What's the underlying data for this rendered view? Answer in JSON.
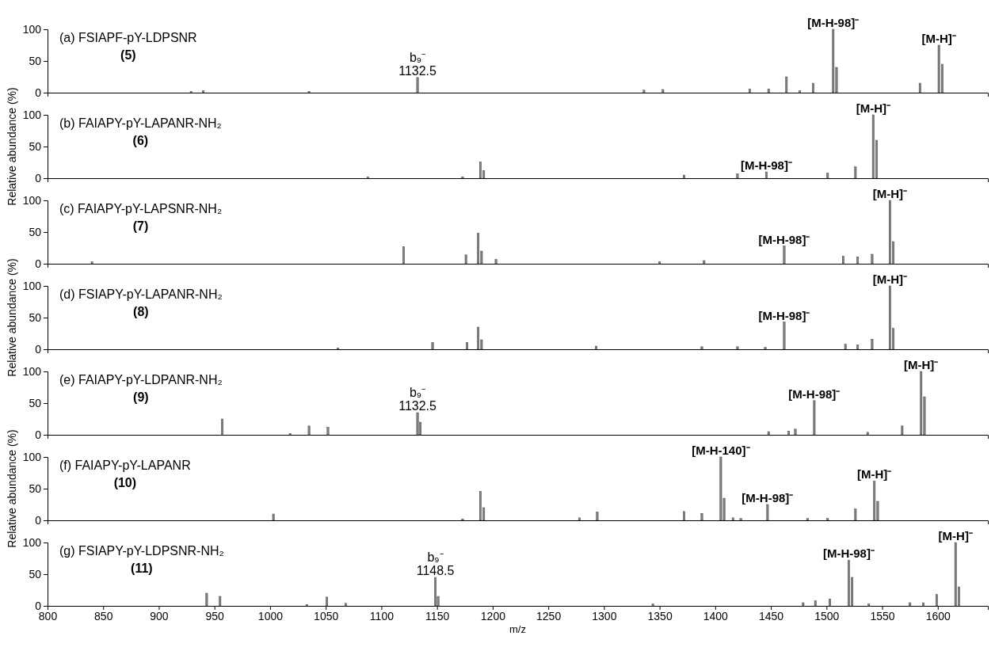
{
  "chart_data": [
    {
      "type": "bar",
      "title": "(a) FSIAPF-pY-LDPSNR",
      "subtitle": "(5)",
      "xlim": [
        800,
        1645
      ],
      "ylim": [
        0,
        100
      ],
      "yticks": [
        0,
        50,
        100
      ],
      "tick_labels": "y",
      "color": "#808080",
      "x": [
        929,
        940,
        1035,
        1132.5,
        1336,
        1353,
        1431,
        1448,
        1464,
        1476,
        1488,
        1506,
        1509,
        1584,
        1601,
        1604
      ],
      "values": [
        2,
        3,
        2,
        24,
        4,
        5,
        6,
        6,
        25,
        3,
        15,
        100,
        40,
        15,
        75,
        45
      ],
      "annotations": [
        {
          "text": "b₉⁻\n1132.5",
          "x": 1132.5,
          "y": 24
        },
        {
          "text": "[M-H-98]⁻",
          "x": 1506,
          "y": 100
        },
        {
          "text": "[M-H]⁻",
          "x": 1601,
          "y": 75
        }
      ]
    },
    {
      "type": "bar",
      "title": "(b) FAIAPY-pY-LAPANR-NH₂",
      "subtitle": "(6)",
      "ylabel": "Relative abundance (%)",
      "xlim": [
        800,
        1645
      ],
      "ylim": [
        0,
        100
      ],
      "yticks": [
        0,
        50,
        100
      ],
      "tick_labels": "y",
      "color": "#808080",
      "x": [
        1088,
        1173,
        1189,
        1192,
        1372,
        1420,
        1446,
        1501,
        1526,
        1542,
        1545
      ],
      "values": [
        2,
        2,
        26,
        12,
        5,
        7,
        10,
        8,
        18,
        100,
        60
      ],
      "annotations": [
        {
          "text": "[M-H-98]⁻",
          "x": 1446,
          "y": 10
        },
        {
          "text": "[M-H]⁻",
          "x": 1542,
          "y": 100
        }
      ]
    },
    {
      "type": "bar",
      "title": "(c) FAIAPY-pY-LAPSNR-NH₂",
      "subtitle": "(7)",
      "xlim": [
        800,
        1645
      ],
      "ylim": [
        0,
        100
      ],
      "yticks": [
        0,
        50,
        100
      ],
      "tick_labels": "y",
      "color": "#808080",
      "x": [
        840,
        1120,
        1176,
        1187,
        1190,
        1203,
        1350,
        1390,
        1462,
        1515,
        1528,
        1541,
        1557,
        1560
      ],
      "values": [
        3,
        27,
        14,
        48,
        20,
        7,
        3,
        5,
        28,
        12,
        11,
        15,
        100,
        35
      ],
      "annotations": [
        {
          "text": "[M-H-98]⁻",
          "x": 1462,
          "y": 28
        },
        {
          "text": "[M-H]⁻",
          "x": 1557,
          "y": 100
        }
      ]
    },
    {
      "type": "bar",
      "title": "(d) FSIAPY-pY-LAPANR-NH₂",
      "subtitle": "(8)",
      "ylabel": "Relative abundance (%)",
      "xlim": [
        800,
        1645
      ],
      "ylim": [
        0,
        100
      ],
      "yticks": [
        0,
        50,
        100
      ],
      "tick_labels": "y",
      "color": "#808080",
      "x": [
        1061,
        1146,
        1177,
        1187,
        1190,
        1293,
        1388,
        1420,
        1445,
        1462,
        1517,
        1528,
        1541,
        1557,
        1560
      ],
      "values": [
        2,
        11,
        11,
        35,
        15,
        5,
        4,
        4,
        3,
        43,
        8,
        7,
        16,
        100,
        33
      ],
      "annotations": [
        {
          "text": "[M-H-98]⁻",
          "x": 1462,
          "y": 43
        },
        {
          "text": "[M-H]⁻",
          "x": 1557,
          "y": 100
        }
      ]
    },
    {
      "type": "bar",
      "title": "(e) FAIAPY-pY-LDPANR-NH₂",
      "subtitle": "(9)",
      "xlim": [
        800,
        1645
      ],
      "ylim": [
        0,
        100
      ],
      "yticks": [
        0,
        50,
        100
      ],
      "tick_labels": "y",
      "color": "#808080",
      "x": [
        957,
        1018,
        1035,
        1052,
        1132.5,
        1135,
        1448,
        1466,
        1472,
        1489,
        1537,
        1568,
        1585,
        1588
      ],
      "values": [
        25,
        2,
        14,
        12,
        35,
        20,
        5,
        6,
        9,
        54,
        4,
        14,
        100,
        60
      ],
      "annotations": [
        {
          "text": "b₉⁻\n1132.5",
          "x": 1132.5,
          "y": 35
        },
        {
          "text": "[M-H-98]⁻",
          "x": 1489,
          "y": 54
        },
        {
          "text": "[M-H]⁻",
          "x": 1585,
          "y": 100
        }
      ]
    },
    {
      "type": "bar",
      "title": "(f) FAIAPY-pY-LAPANR",
      "subtitle": "(10)",
      "ylabel": "Relative abundance (%)",
      "xlim": [
        800,
        1645
      ],
      "ylim": [
        0,
        100
      ],
      "yticks": [
        0,
        50,
        100
      ],
      "tick_labels": "y",
      "color": "#808080",
      "x": [
        1003,
        1173,
        1189,
        1192,
        1278,
        1294,
        1372,
        1388,
        1405,
        1408,
        1416,
        1423,
        1447,
        1483,
        1501,
        1526,
        1543,
        1546
      ],
      "values": [
        10,
        2,
        46,
        20,
        4,
        13,
        14,
        11,
        100,
        35,
        4,
        3,
        25,
        3,
        3,
        18,
        62,
        30
      ],
      "annotations": [
        {
          "text": "[M-H-140]⁻",
          "x": 1405,
          "y": 100
        },
        {
          "text": "[M-H-98]⁻",
          "x": 1447,
          "y": 25
        },
        {
          "text": "[M-H]⁻",
          "x": 1543,
          "y": 62
        }
      ]
    },
    {
      "type": "bar",
      "title": "(g) FSIAPY-pY-LDPSNR-NH₂",
      "subtitle": "(11)",
      "xlabel": "m/z",
      "xlim": [
        800,
        1645
      ],
      "ylim": [
        0,
        100
      ],
      "yticks": [
        0,
        50,
        100
      ],
      "xticks": [
        800,
        850,
        900,
        950,
        1000,
        1050,
        1100,
        1150,
        1200,
        1250,
        1300,
        1350,
        1400,
        1450,
        1500,
        1550,
        1600
      ],
      "color": "#808080",
      "x": [
        943,
        955,
        1033,
        1051,
        1068,
        1148.5,
        1151,
        1344,
        1479,
        1490,
        1503,
        1520,
        1523,
        1538,
        1575,
        1587,
        1599,
        1616,
        1619
      ],
      "values": [
        20,
        15,
        2,
        14,
        4,
        45,
        15,
        3,
        5,
        8,
        11,
        72,
        45,
        3,
        5,
        5,
        18,
        100,
        30
      ],
      "annotations": [
        {
          "text": "b₉⁻\n1148.5",
          "x": 1148.5,
          "y": 45
        },
        {
          "text": "[M-H-98]⁻",
          "x": 1520,
          "y": 72
        },
        {
          "text": "[M-H]⁻",
          "x": 1616,
          "y": 100
        }
      ]
    }
  ]
}
